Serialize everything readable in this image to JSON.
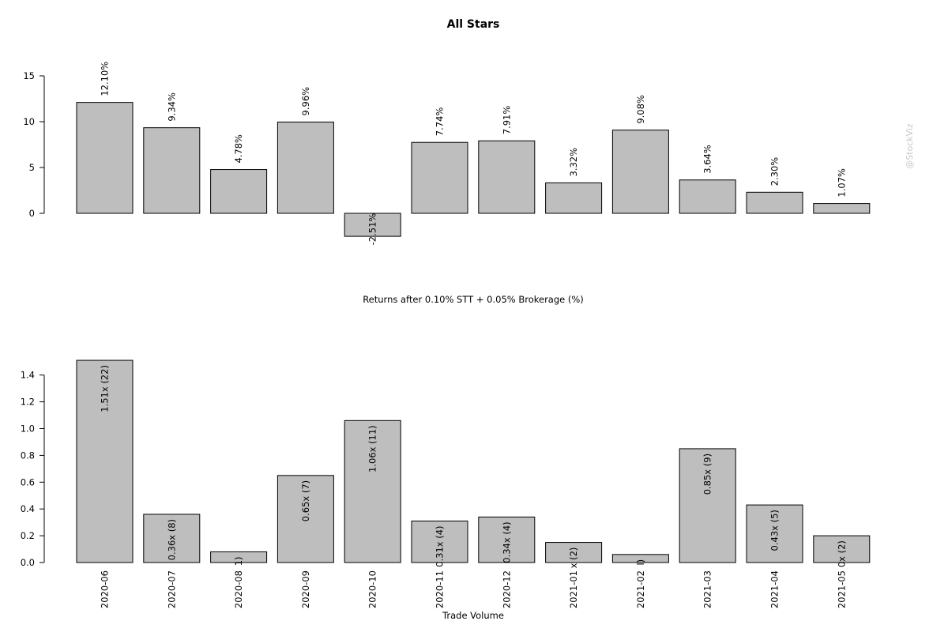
{
  "watermark": "@StockViz",
  "chart_data": [
    {
      "type": "bar",
      "title": "All Stars",
      "xlabel": "Returns after 0.10% STT + 0.05% Brokerage (%)",
      "ylabel": "",
      "ylim": [
        -2.51,
        15
      ],
      "yticks": [
        "0",
        "5",
        "10",
        "15"
      ],
      "categories": [
        "2020-06",
        "2020-07",
        "2020-08",
        "2020-09",
        "2020-10",
        "2020-11",
        "2020-12",
        "2021-01",
        "2021-02",
        "2021-03",
        "2021-04",
        "2021-05"
      ],
      "values": [
        12.1,
        9.34,
        4.78,
        9.96,
        -2.51,
        7.74,
        7.91,
        3.32,
        9.08,
        3.64,
        2.3,
        1.07
      ],
      "data_labels": [
        "12.10%",
        "9.34%",
        "4.78%",
        "9.96%",
        "-2.51%",
        "7.74%",
        "7.91%",
        "3.32%",
        "9.08%",
        "3.64%",
        "2.30%",
        "1.07%"
      ],
      "grid": false,
      "legend": "none"
    },
    {
      "type": "bar",
      "title": "",
      "xlabel": "Trade Volume",
      "ylabel": "",
      "ylim": [
        0,
        1.51
      ],
      "yticks": [
        "0.0",
        "0.2",
        "0.4",
        "0.6",
        "0.8",
        "1.0",
        "1.2",
        "1.4"
      ],
      "categories": [
        "2020-06",
        "2020-07",
        "2020-08",
        "2020-09",
        "2020-10",
        "2020-11",
        "2020-12",
        "2021-01",
        "2021-02",
        "2021-03",
        "2021-04",
        "2021-05"
      ],
      "values": [
        1.51,
        0.36,
        0.08,
        0.65,
        1.06,
        0.31,
        0.34,
        0.15,
        0.06,
        0.85,
        0.43,
        0.2
      ],
      "data_labels": [
        "1.51x (22)",
        "0.36x (8)",
        "1)",
        "0.65x (7)",
        "1.06x (11)",
        "0.31x (4)",
        "0.34x (4)",
        "x (2)",
        "l)",
        "0.85x (9)",
        "0.43x (5)",
        "0x (2)"
      ],
      "grid": false,
      "legend": "none"
    }
  ]
}
